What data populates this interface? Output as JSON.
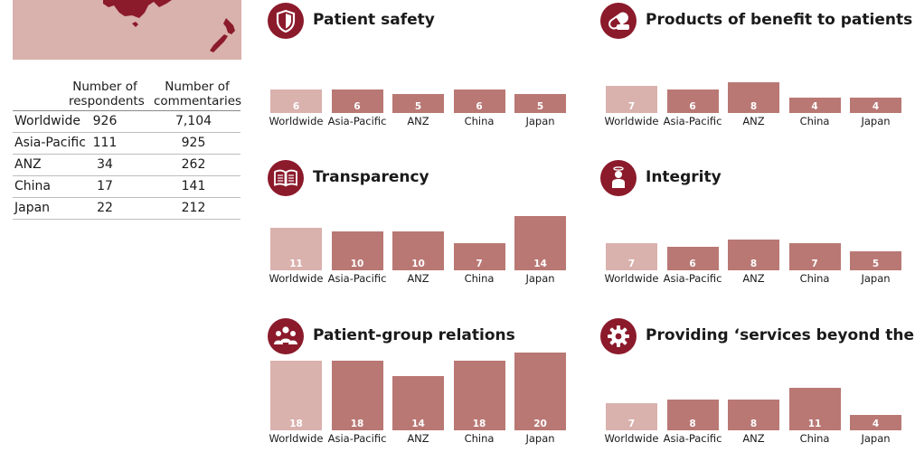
{
  "colors": {
    "accent": "#8b1a2b",
    "bar": "#b97874",
    "bar_worldwide": "#d9b1ad",
    "map_background": "#d9b1ad",
    "map_land": "#8b1a2b"
  },
  "stats_table": {
    "headers": [
      "Number of respondents",
      "Number of commentaries"
    ],
    "rows": [
      {
        "region": "Worldwide",
        "respondents": "926",
        "commentaries": "7,104"
      },
      {
        "region": "Asia-Pacific",
        "respondents": "111",
        "commentaries": "925"
      },
      {
        "region": "ANZ",
        "respondents": "34",
        "commentaries": "262"
      },
      {
        "region": "China",
        "respondents": "17",
        "commentaries": "141"
      },
      {
        "region": "Japan",
        "respondents": "22",
        "commentaries": "212"
      }
    ]
  },
  "chart_data": [
    {
      "type": "bar",
      "title": "Patient safety",
      "icon": "shield-icon",
      "categories": [
        "Worldwide",
        "Asia-Pacific",
        "ANZ",
        "China",
        "Japan"
      ],
      "values": [
        6,
        6,
        5,
        6,
        5
      ],
      "highlight_first": true
    },
    {
      "type": "bar",
      "title": "Products of benefit to patients",
      "icon": "pill-icon",
      "categories": [
        "Worldwide",
        "Asia-Pacific",
        "ANZ",
        "China",
        "Japan"
      ],
      "values": [
        7,
        6,
        8,
        4,
        4
      ],
      "highlight_first": true
    },
    {
      "type": "bar",
      "title": "Transparency",
      "icon": "open-book-icon",
      "categories": [
        "Worldwide",
        "Asia-Pacific",
        "ANZ",
        "China",
        "Japan"
      ],
      "values": [
        11,
        10,
        10,
        7,
        14
      ],
      "highlight_first": true
    },
    {
      "type": "bar",
      "title": "Integrity",
      "icon": "person-halo-icon",
      "categories": [
        "Worldwide",
        "Asia-Pacific",
        "ANZ",
        "China",
        "Japan"
      ],
      "values": [
        7,
        6,
        8,
        7,
        5
      ],
      "highlight_first": true
    },
    {
      "type": "bar",
      "title": "Patient-group relations",
      "icon": "group-icon",
      "categories": [
        "Worldwide",
        "Asia-Pacific",
        "ANZ",
        "China",
        "Japan"
      ],
      "values": [
        18,
        18,
        14,
        18,
        20
      ],
      "highlight_first": true
    },
    {
      "type": "bar",
      "title": "Providing ‘services beyond the pill’",
      "icon": "gear-icon",
      "categories": [
        "Worldwide",
        "Asia-Pacific",
        "ANZ",
        "China",
        "Japan"
      ],
      "values": [
        7,
        8,
        8,
        11,
        4
      ],
      "highlight_first": true
    }
  ]
}
